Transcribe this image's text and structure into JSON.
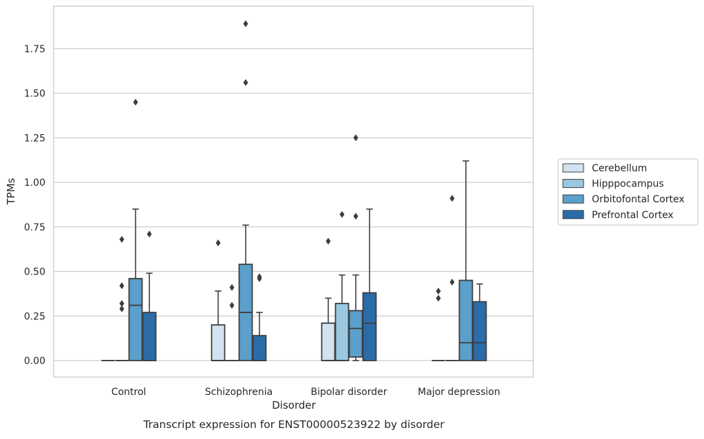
{
  "chart_data": {
    "type": "box",
    "title": "Transcript expression for ENST00000523922 by disorder",
    "xlabel": "Disorder",
    "ylabel": "TPMs",
    "ylim": [
      -0.09,
      1.99
    ],
    "yticks": [
      0.0,
      0.25,
      0.5,
      0.75,
      1.0,
      1.25,
      1.5,
      1.75
    ],
    "ytick_labels": [
      "0.00",
      "0.25",
      "0.50",
      "0.75",
      "1.00",
      "1.25",
      "1.50",
      "1.75"
    ],
    "grid": "horizontal",
    "legend_position": "right",
    "categories": [
      "Control",
      "Schizophrenia",
      "Bipolar disorder",
      "Major depression"
    ],
    "series": [
      {
        "name": "Cerebellum",
        "color": "#d2e2f1",
        "boxes": [
          {
            "q1": 0.0,
            "median": 0.0,
            "q3": 0.0,
            "whislo": 0.0,
            "whishi": 0.0,
            "fliers": []
          },
          {
            "q1": 0.0,
            "median": 0.0,
            "q3": 0.2,
            "whislo": 0.0,
            "whishi": 0.39,
            "fliers": [
              0.66
            ]
          },
          {
            "q1": 0.0,
            "median": 0.0,
            "q3": 0.21,
            "whislo": 0.0,
            "whishi": 0.35,
            "fliers": [
              0.67
            ]
          },
          {
            "q1": 0.0,
            "median": 0.0,
            "q3": 0.0,
            "whislo": 0.0,
            "whishi": 0.0,
            "fliers": [
              0.35,
              0.39
            ]
          }
        ]
      },
      {
        "name": "Hipppocampus",
        "color": "#9ac8e0",
        "boxes": [
          {
            "q1": 0.0,
            "median": 0.0,
            "q3": 0.0,
            "whislo": 0.0,
            "whishi": 0.0,
            "fliers": [
              0.29,
              0.32,
              0.42,
              0.68
            ]
          },
          {
            "q1": 0.0,
            "median": 0.0,
            "q3": 0.0,
            "whislo": 0.0,
            "whishi": 0.0,
            "fliers": [
              0.31,
              0.41
            ]
          },
          {
            "q1": 0.0,
            "median": 0.0,
            "q3": 0.32,
            "whislo": 0.0,
            "whishi": 0.48,
            "fliers": [
              0.82
            ]
          },
          {
            "q1": 0.0,
            "median": 0.0,
            "q3": 0.0,
            "whislo": 0.0,
            "whishi": 0.0,
            "fliers": [
              0.44,
              0.91
            ]
          }
        ]
      },
      {
        "name": "Orbitofontal Cortex",
        "color": "#5b9fcb",
        "boxes": [
          {
            "q1": 0.0,
            "median": 0.31,
            "q3": 0.46,
            "whislo": 0.0,
            "whishi": 0.85,
            "fliers": [
              1.45
            ]
          },
          {
            "q1": 0.0,
            "median": 0.27,
            "q3": 0.54,
            "whislo": 0.0,
            "whishi": 0.76,
            "fliers": [
              1.56,
              1.89
            ]
          },
          {
            "q1": 0.02,
            "median": 0.18,
            "q3": 0.28,
            "whislo": 0.0,
            "whishi": 0.48,
            "fliers": [
              0.81,
              1.25
            ]
          },
          {
            "q1": 0.0,
            "median": 0.1,
            "q3": 0.45,
            "whislo": 0.0,
            "whishi": 1.12,
            "fliers": []
          }
        ]
      },
      {
        "name": "Prefrontal Cortex",
        "color": "#2b6ca8",
        "boxes": [
          {
            "q1": 0.0,
            "median": 0.0,
            "q3": 0.27,
            "whislo": 0.0,
            "whishi": 0.49,
            "fliers": [
              0.71
            ]
          },
          {
            "q1": 0.0,
            "median": 0.0,
            "q3": 0.14,
            "whislo": 0.0,
            "whishi": 0.27,
            "fliers": [
              0.46,
              0.47
            ]
          },
          {
            "q1": 0.0,
            "median": 0.21,
            "q3": 0.38,
            "whislo": 0.0,
            "whishi": 0.85,
            "fliers": []
          },
          {
            "q1": 0.0,
            "median": 0.1,
            "q3": 0.33,
            "whislo": 0.0,
            "whishi": 0.43,
            "fliers": []
          }
        ]
      }
    ]
  }
}
